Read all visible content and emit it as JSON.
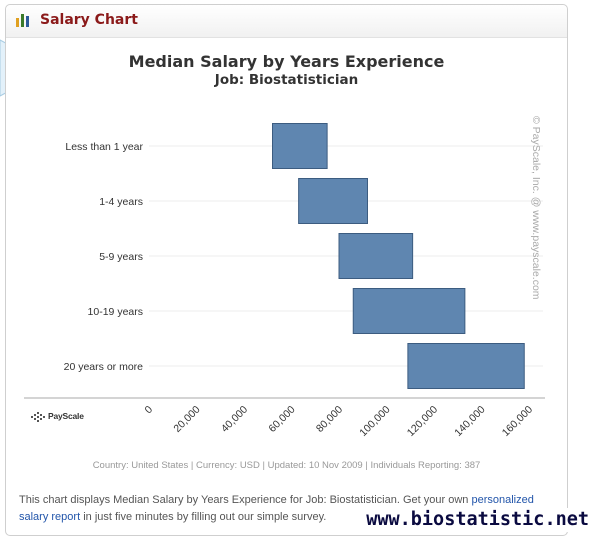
{
  "widget": {
    "title": "Salary Chart",
    "icon": "bar-chart-icon"
  },
  "chart_data": {
    "type": "bar",
    "orientation": "horizontal-floating-range",
    "title": "Median Salary by Years Experience",
    "subtitle": "Job: Biostatistician",
    "categories": [
      "Less than 1 year",
      "1-4 years",
      "5-9 years",
      "10-19 years",
      "20 years or more"
    ],
    "ranges": [
      {
        "low": 52000,
        "high": 75000
      },
      {
        "low": 63000,
        "high": 92000
      },
      {
        "low": 80000,
        "high": 111000
      },
      {
        "low": 86000,
        "high": 133000
      },
      {
        "low": 109000,
        "high": 158000
      }
    ],
    "xticks": [
      "0",
      "20,000",
      "40,000",
      "60,000",
      "80,000",
      "100,000",
      "120,000",
      "140,000",
      "160,000"
    ],
    "xlim": [
      0,
      160000
    ],
    "bar_color": "#5f86b0",
    "grid": true,
    "legend": "none"
  },
  "watermark": "© PayScale, Inc. @ www.payscale.com",
  "logo_text": "PayScale",
  "footer": "Country: United States | Currency: USD | Updated: 10 Nov 2009 | Individuals Reporting: 387",
  "description": {
    "text_before": "This chart displays Median Salary by Years Experience for Job: Biostatistician. Get your own ",
    "link": "personalized salary report",
    "text_after": " in just five minutes by filling out our simple survey."
  },
  "site_url": "www.biostatistic.net"
}
